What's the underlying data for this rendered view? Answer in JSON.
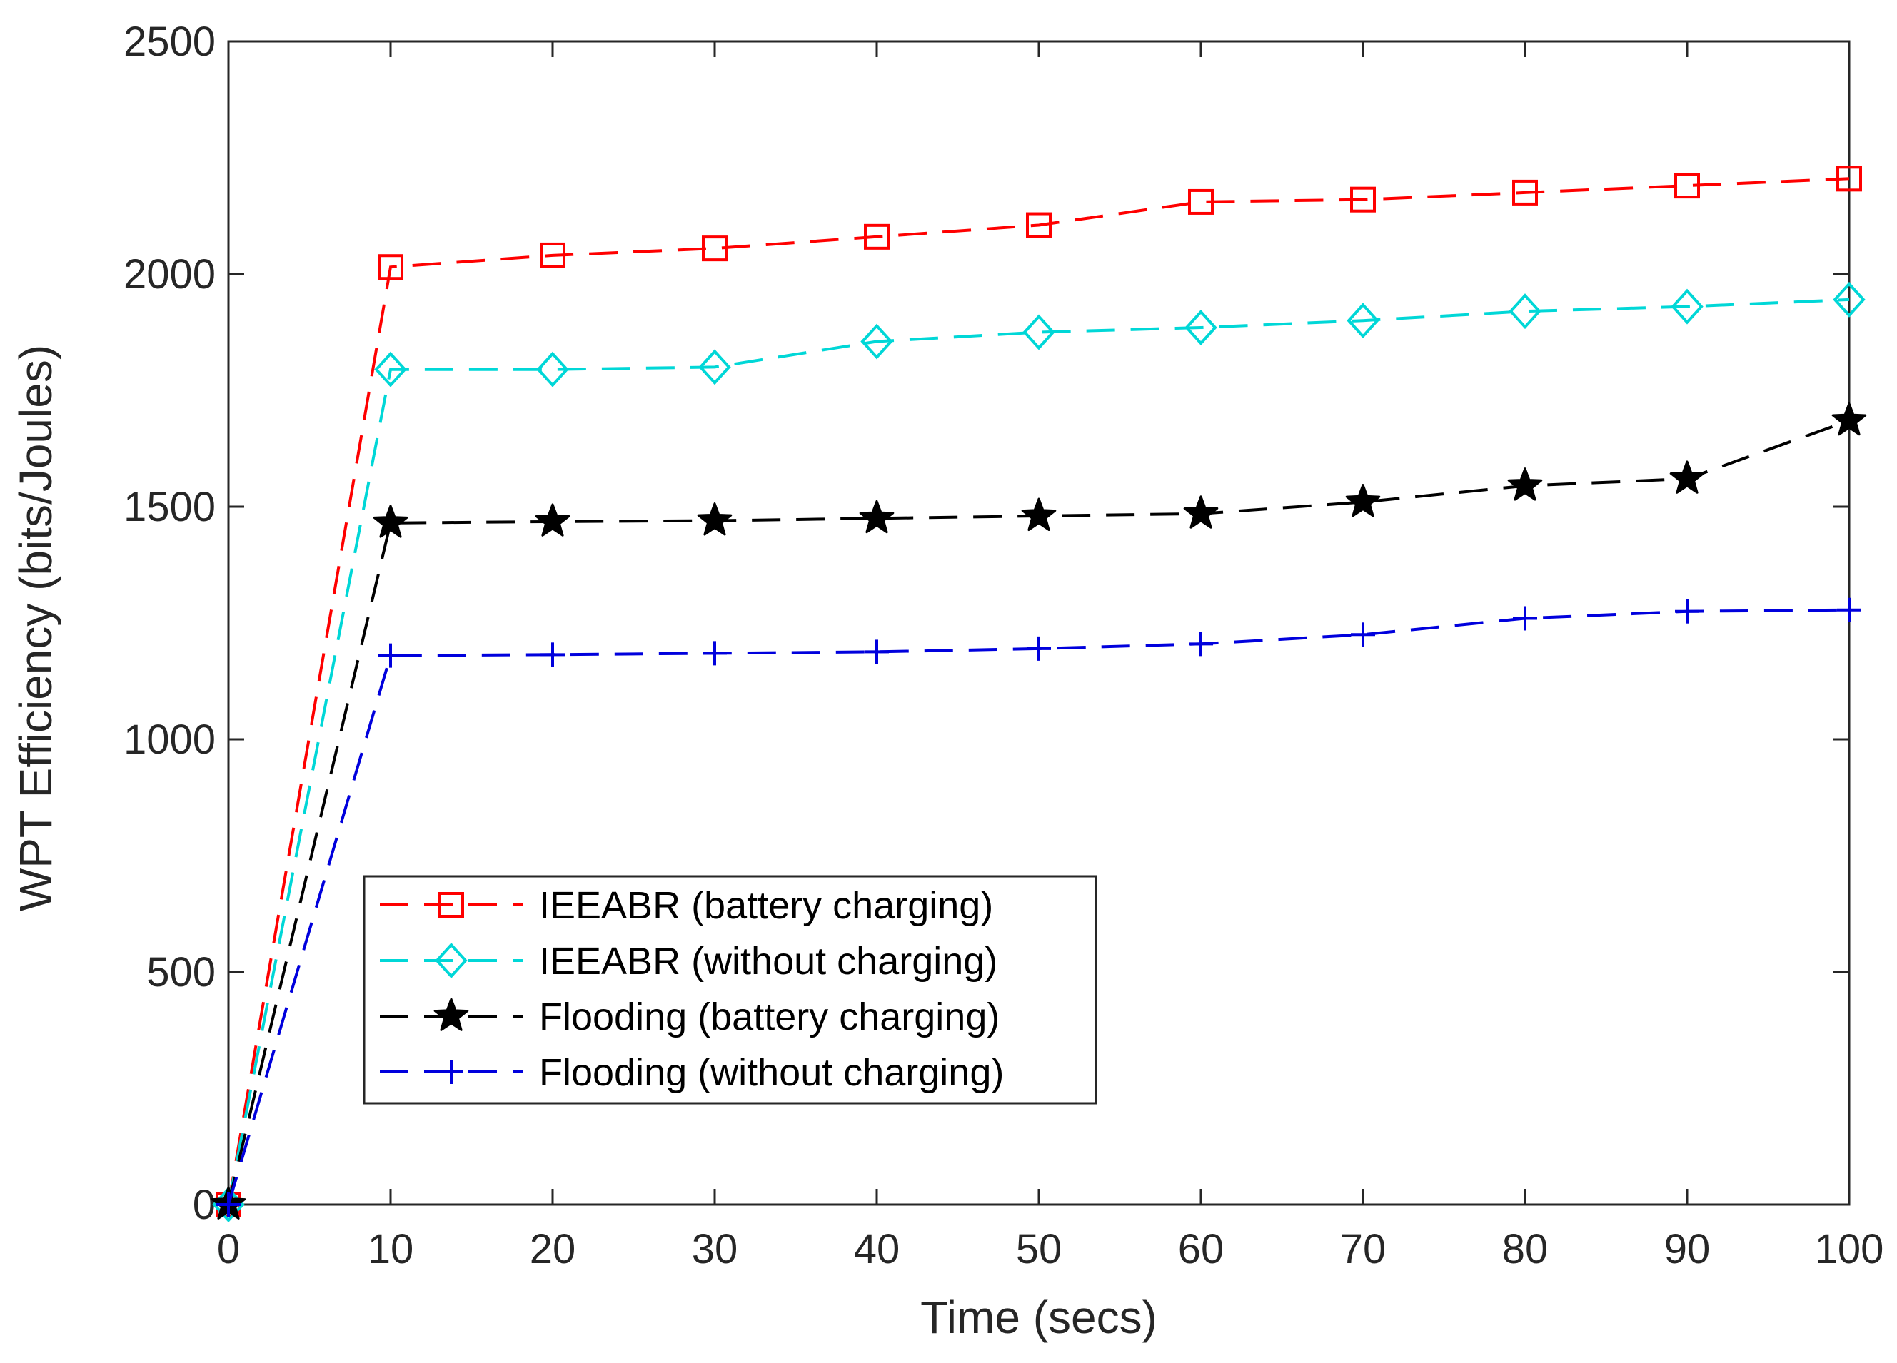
{
  "chart_data": {
    "type": "line",
    "title": "",
    "xlabel": "Time (secs)",
    "ylabel": "WPT Efficiency (bits/Joules)",
    "xlim": [
      0,
      100
    ],
    "ylim": [
      0,
      2500
    ],
    "xticks": [
      0,
      10,
      20,
      30,
      40,
      50,
      60,
      70,
      80,
      90,
      100
    ],
    "xtick_labels": [
      "0",
      "10",
      "20",
      "30",
      "40",
      "50",
      "60",
      "70",
      "80",
      "90",
      "100"
    ],
    "yticks": [
      0,
      500,
      1000,
      1500,
      2000,
      2500
    ],
    "ytick_labels": [
      "0",
      "500",
      "1000",
      "1500",
      "2000",
      "2500"
    ],
    "grid": false,
    "legend_position": "lower-center",
    "x": [
      0,
      10,
      20,
      30,
      40,
      50,
      60,
      70,
      80,
      90,
      100
    ],
    "series": [
      {
        "name": "IEEABR (battery charging)",
        "color": "#ff0000",
        "marker": "square",
        "values": [
          0,
          2015,
          2040,
          2055,
          2080,
          2105,
          2155,
          2160,
          2175,
          2190,
          2205
        ]
      },
      {
        "name": "IEEABR (without charging)",
        "color": "#00d7d7",
        "marker": "diamond",
        "values": [
          0,
          1795,
          1795,
          1800,
          1855,
          1875,
          1885,
          1900,
          1920,
          1930,
          1945
        ]
      },
      {
        "name": "Flooding (battery charging)",
        "color": "#000000",
        "marker": "star",
        "values": [
          0,
          1465,
          1468,
          1470,
          1475,
          1480,
          1485,
          1510,
          1545,
          1560,
          1685
        ]
      },
      {
        "name": "Flooding (without charging)",
        "color": "#0000dd",
        "marker": "plus",
        "values": [
          0,
          1180,
          1182,
          1185,
          1188,
          1195,
          1205,
          1225,
          1260,
          1275,
          1278
        ]
      }
    ]
  }
}
